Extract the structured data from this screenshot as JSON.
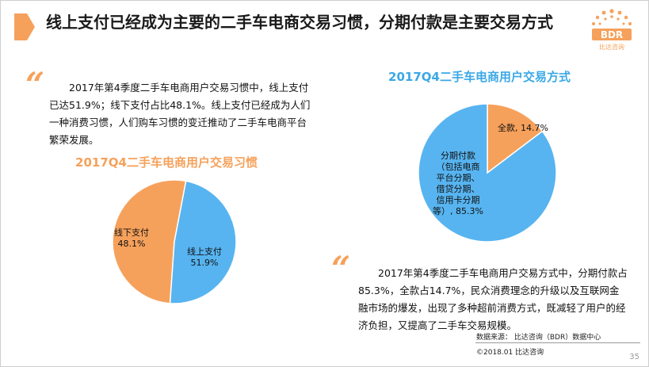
{
  "title": "线上支付已经成为主要的二手车电商交易习惯，分期付款是主要交易方式",
  "logo": {
    "text": "BDR",
    "sub": "比达咨询"
  },
  "quote_mark": "“",
  "left_text": "2017年第4季度二手车电商用户交易习惯中，线上支付已达51.9%；线下支付占比48.1%。线上支付已经成为人们一种消费习惯，人们购车习惯的变迁推动了二手车电商平台繁荣发展。",
  "right_text": "2017年第4季度二手车电商用户交易方式中，分期付款占85.3%，全款占14.7%，民众消费理念的升级以及互联网金融市场的爆发，出现了多种超前消费方式，既减轻了用户的经济负担，又提高了二手车交易规模。",
  "source": "数据来源：  比达咨询（BDR）数据中心",
  "copyright": "©2018.01  比达咨询",
  "page_number": "35",
  "colors": {
    "accent": "#f6a15b",
    "blue": "#57b4f0",
    "title_orange": "#f6a15b",
    "title_blue": "#3aa8e6"
  },
  "chart_data": [
    {
      "type": "pie",
      "title": "2017Q4二手车电商用户交易习惯",
      "slices": [
        {
          "name": "线上支付",
          "value": 51.9,
          "label_lines": [
            "线上支付",
            "51.9%"
          ],
          "color": "#f6a15b"
        },
        {
          "name": "线下支付",
          "value": 48.1,
          "label_lines": [
            "线下支付",
            "48.1%"
          ],
          "color": "#57b4f0"
        }
      ]
    },
    {
      "type": "pie",
      "title": "2017Q4二手车电商用户交易方式",
      "slices": [
        {
          "name": "全款",
          "value": 14.7,
          "label_lines": [
            "全款, 14.7%"
          ],
          "color": "#f6a15b"
        },
        {
          "name": "分期付款",
          "value": 85.3,
          "label_lines": [
            "分期付款",
            "（包括电商",
            "平台分期、",
            "借贷分期、",
            "信用卡分期",
            "等）, 85.3%"
          ],
          "color": "#57b4f0"
        }
      ]
    }
  ]
}
